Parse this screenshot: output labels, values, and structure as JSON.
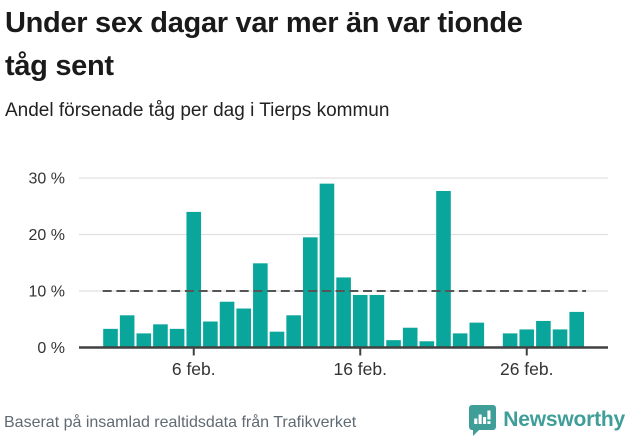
{
  "header": {
    "title": "Under sex dagar var mer än var tionde tåg sent",
    "subtitle": "Andel försenade tåg per dag i Tierps kommun"
  },
  "chart_data": {
    "type": "bar",
    "title": "Andel försenade tåg per dag i Tierps kommun",
    "categories": [
      "1 feb.",
      "2 feb.",
      "3 feb.",
      "4 feb.",
      "5 feb.",
      "6 feb.",
      "7 feb.",
      "8 feb.",
      "9 feb.",
      "10 feb.",
      "11 feb.",
      "12 feb.",
      "13 feb.",
      "14 feb.",
      "15 feb.",
      "16 feb.",
      "17 feb.",
      "18 feb.",
      "19 feb.",
      "20 feb.",
      "21 feb.",
      "22 feb.",
      "23 feb.",
      "24 feb.",
      "25 feb.",
      "26 feb.",
      "27 feb.",
      "28 feb.",
      "29 feb."
    ],
    "values": [
      3.3,
      5.7,
      2.5,
      4.1,
      3.3,
      24.0,
      4.6,
      8.1,
      6.9,
      14.9,
      2.8,
      5.7,
      19.5,
      29.0,
      12.4,
      9.3,
      9.3,
      1.3,
      3.5,
      1.1,
      27.7,
      2.5,
      4.4,
      0,
      2.5,
      3.2,
      4.7,
      3.2,
      6.3
    ],
    "unit": "%",
    "ylim": [
      0,
      32
    ],
    "yticks": [
      0,
      10,
      20,
      30
    ],
    "ytick_labels": [
      "0 %",
      "10 %",
      "20 %",
      "30 %"
    ],
    "x_ticks": [
      {
        "day": 6,
        "label": "6 feb."
      },
      {
        "day": 16,
        "label": "16 feb."
      },
      {
        "day": 26,
        "label": "26 feb."
      }
    ],
    "reference_line": {
      "value": 10,
      "style": "dashed"
    },
    "grid": true,
    "legend": "none",
    "bar_color": "#0aa69b"
  },
  "footer": {
    "source": "Baserat på insamlad realtidsdata från Trafikverket",
    "brand": "Newsworthy"
  },
  "colors": {
    "bar": "#0aa69b",
    "brand_teal": "#3f9e98",
    "grid": "#e0e0e0",
    "axis": "#414141",
    "reference": "#555555",
    "axis_text": "#333333",
    "title_text": "#1a1a1a",
    "source_text": "#5f6a72"
  }
}
